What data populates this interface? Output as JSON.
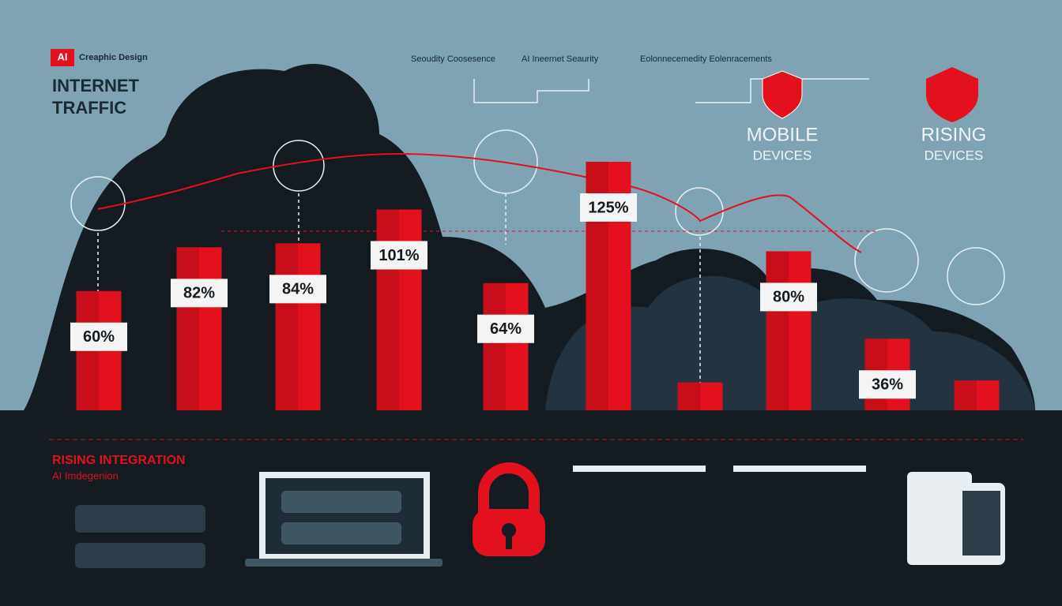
{
  "header": {
    "badge": "AI",
    "brand": "Creaphic Design",
    "title_line1": "INTERNET",
    "title_line2": "TRAFFIC",
    "tags": [
      "Seoudity Coosesence",
      "AI Ineernet Seaurity",
      "Eolonnecemedity Eolenracements"
    ],
    "callouts": [
      {
        "line1": "MOBILE",
        "line2": "DEVICES"
      },
      {
        "line1": "RISING",
        "line2": "DEVICES"
      }
    ]
  },
  "chart_data": {
    "type": "bar",
    "categories": [
      null,
      null,
      null,
      null,
      null,
      null,
      null,
      null,
      null,
      null
    ],
    "values": [
      60,
      82,
      84,
      101,
      64,
      125,
      14,
      80,
      36,
      15
    ],
    "value_labels": [
      "60%",
      "82%",
      "84%",
      "101%",
      "64%",
      "125%",
      null,
      "80%",
      "36%",
      null
    ],
    "color": "#e3101e"
  },
  "footer": {
    "title": "RISING INTEGRATION",
    "subtitle": "AI Imdegenion"
  }
}
